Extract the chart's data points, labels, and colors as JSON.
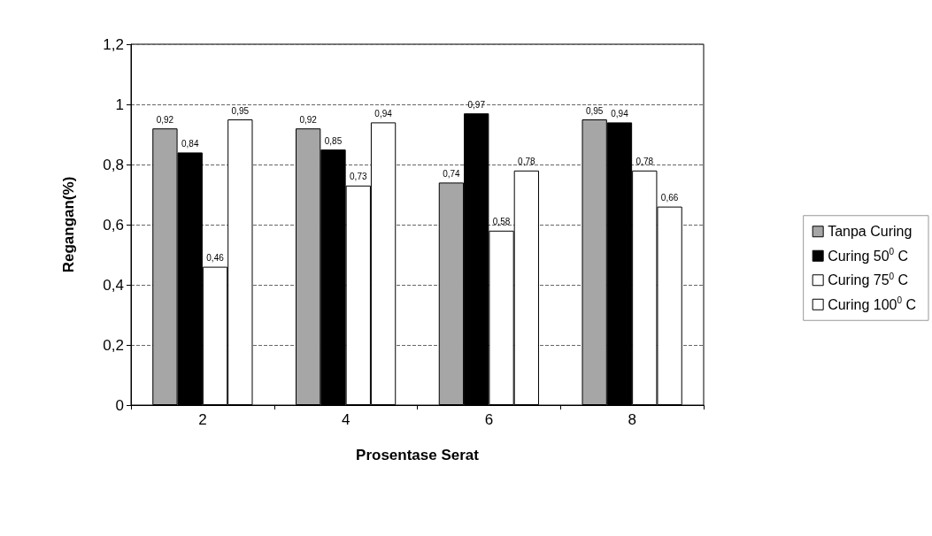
{
  "chart_data": {
    "type": "bar",
    "xlabel": "Prosentase Serat",
    "ylabel": "Regangan(%)",
    "categories": [
      "2",
      "4",
      "6",
      "8"
    ],
    "series": [
      {
        "name": "Tanpa Curing",
        "color": "#a6a6a6",
        "values": [
          0.92,
          0.92,
          0.74,
          0.95
        ],
        "value_labels": [
          "0,92",
          "0,92",
          "0,74",
          "0,95"
        ]
      },
      {
        "name": "Curing 50$^{0}$ C",
        "color": "#000000",
        "values": [
          0.84,
          0.85,
          0.97,
          0.94
        ],
        "value_labels": [
          "0,84",
          "0,85",
          "0,97",
          "0,94"
        ]
      },
      {
        "name": "Curing 75$^{0}$ C",
        "color": "#ffffff",
        "values": [
          0.46,
          0.73,
          0.58,
          0.78
        ],
        "value_labels": [
          "0,46",
          "0,73",
          "0,58",
          "0,78"
        ]
      },
      {
        "name": "Curing 100$^{0}$ C",
        "color": "#ffffff",
        "values": [
          0.95,
          0.94,
          0.78,
          0.66
        ],
        "value_labels": [
          "0,95",
          "0,94",
          "0,78",
          "0,66"
        ]
      }
    ],
    "ylim": [
      0,
      1.2
    ],
    "yticks": [
      0,
      {
        "value": 0.2,
        "label": "0,2"
      },
      {
        "value": 0.4,
        "label": "0,4"
      },
      {
        "value": 0.6,
        "label": "0,6"
      },
      {
        "value": 0.8,
        "label": "0,8"
      },
      1,
      {
        "value": 1.2,
        "label": "1,2"
      }
    ],
    "grid": "y",
    "legend": "right"
  }
}
